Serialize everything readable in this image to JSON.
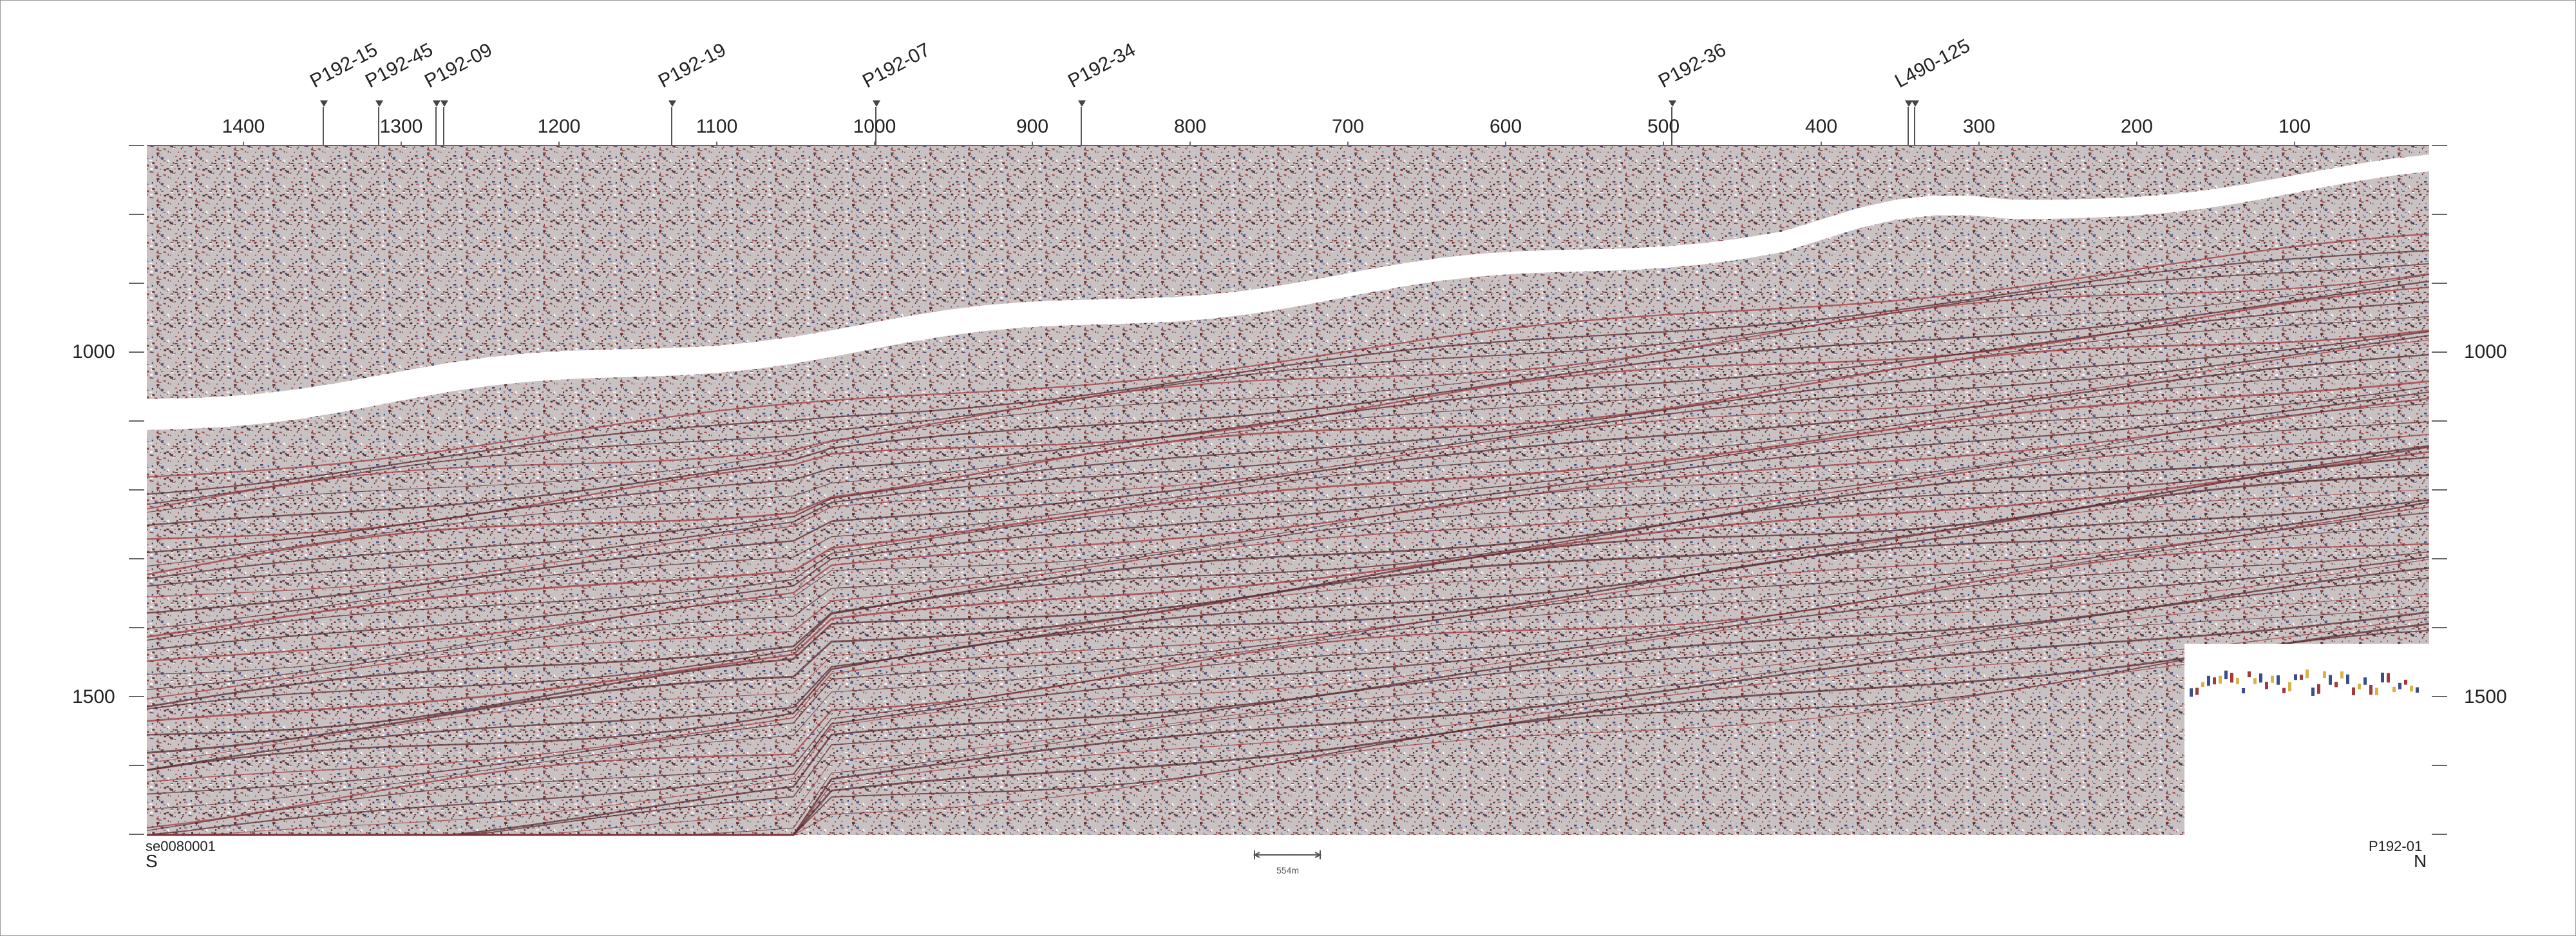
{
  "section": {
    "line_id": "P192-01",
    "file_label": "se0080001",
    "direction_left": "S",
    "direction_right": "N",
    "scale_bar_label": "554m"
  },
  "shotpoint_axis": {
    "ticks": [
      "1400",
      "1300",
      "1200",
      "1100",
      "1000",
      "900",
      "800",
      "700",
      "600",
      "500",
      "400",
      "300",
      "200",
      "100"
    ]
  },
  "time_axis": {
    "labels": [
      "1000",
      "1500"
    ]
  },
  "well_ties": [
    {
      "name": "P192-15"
    },
    {
      "name": "P192-45"
    },
    {
      "name": "P192-09"
    },
    {
      "name": "P192-19"
    },
    {
      "name": "P192-07"
    },
    {
      "name": "P192-34"
    },
    {
      "name": "P192-36"
    },
    {
      "name": "L490-125"
    }
  ],
  "colors": {
    "trace_dark": "#5a2a2e",
    "trace_red": "#a23a3c",
    "trace_blue": "#3a4e8c",
    "background": "#ffffff",
    "axis": "#666666"
  }
}
